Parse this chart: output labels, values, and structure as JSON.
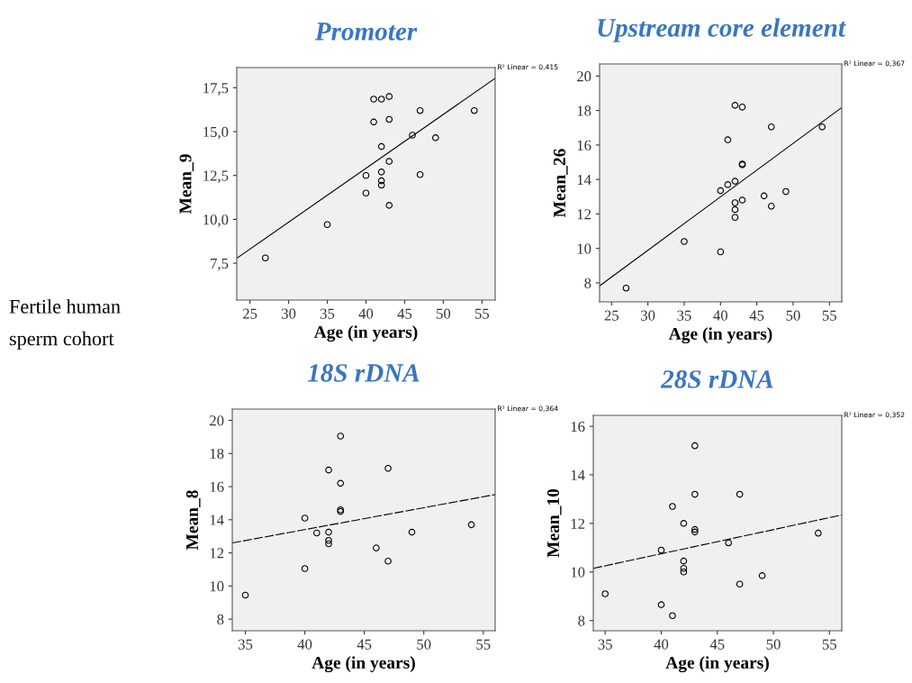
{
  "chart_data": [
    {
      "type": "scatter",
      "title": "Promoter",
      "xlabel": "Age (in years)",
      "ylabel": "Mean_9",
      "xlim": [
        23.3,
        56.7
      ],
      "ylim": [
        5.4,
        18.65
      ],
      "xticks": [
        25,
        30,
        35,
        40,
        45,
        50,
        55
      ],
      "yticks": [
        {
          "value": 7.5,
          "label": "7,5"
        },
        {
          "value": 10.0,
          "label": "10,0"
        },
        {
          "value": 12.5,
          "label": "12,5"
        },
        {
          "value": 15.0,
          "label": "15,0"
        },
        {
          "value": 17.5,
          "label": "17,5"
        }
      ],
      "grid": false,
      "annotations": [
        "R² Linear = 0,415"
      ],
      "series": [
        {
          "type": "scatter",
          "color": "#000000",
          "marker": "circle",
          "x": [
            27,
            35,
            40,
            40,
            41,
            41,
            42,
            42,
            42,
            42,
            42,
            43,
            43,
            43,
            43,
            46,
            47,
            47,
            49,
            54
          ],
          "values": [
            7.8,
            9.7,
            12.5,
            11.5,
            16.85,
            15.55,
            16.85,
            14.15,
            12.7,
            12.2,
            11.95,
            17.0,
            15.7,
            13.3,
            10.8,
            14.8,
            16.2,
            12.55,
            14.65,
            16.2
          ]
        },
        {
          "type": "line",
          "color": "#000000",
          "line_style": "solid",
          "x": [
            23.3,
            56.7
          ],
          "values": [
            7.78,
            18.04
          ]
        }
      ]
    },
    {
      "type": "scatter",
      "title": "Upstream core element",
      "xlabel": "Age (in years)",
      "ylabel": "Mean_26",
      "xlim": [
        23.35,
        56.7
      ],
      "ylim": [
        6.9,
        20.7
      ],
      "xticks": [
        25,
        30,
        35,
        40,
        45,
        50,
        55
      ],
      "yticks": [
        8,
        10,
        12,
        14,
        16,
        18,
        20
      ],
      "grid": false,
      "annotations": [
        "R² Linear = 0,367"
      ],
      "series": [
        {
          "type": "scatter",
          "color": "#000000",
          "marker": "circle",
          "x": [
            27,
            35,
            40,
            40,
            41,
            41,
            42,
            42,
            42,
            42,
            42,
            43,
            43,
            43,
            43,
            46,
            47,
            47,
            49,
            54
          ],
          "values": [
            7.7,
            10.4,
            13.35,
            9.8,
            16.3,
            13.7,
            18.3,
            13.9,
            12.65,
            12.25,
            11.8,
            18.2,
            14.9,
            14.85,
            12.8,
            13.05,
            17.05,
            12.45,
            13.3,
            17.05
          ]
        },
        {
          "type": "line",
          "color": "#000000",
          "line_style": "solid",
          "x": [
            23.35,
            56.7
          ],
          "values": [
            7.83,
            18.17
          ]
        }
      ]
    },
    {
      "type": "other",
      "annotations": [
        "Fertile human sperm cohort"
      ]
    },
    {
      "type": "scatter",
      "title": "18S rDNA",
      "xlabel": "Age (in years)",
      "ylabel": "Mean_8",
      "xlim": [
        33.9,
        56.0
      ],
      "ylim": [
        7.3,
        20.68
      ],
      "xticks": [
        35,
        40,
        45,
        50,
        55
      ],
      "yticks": [
        8,
        10,
        12,
        14,
        16,
        18,
        20
      ],
      "grid": false,
      "annotations": [
        "R² Linear = 0,364"
      ],
      "series": [
        {
          "type": "scatter",
          "color": "#000000",
          "marker": "circle",
          "x": [
            35,
            40,
            40,
            41,
            42,
            42,
            42,
            42,
            43,
            43,
            43,
            43,
            46,
            47,
            47,
            49,
            54
          ],
          "values": [
            9.45,
            14.1,
            11.05,
            13.2,
            17.0,
            13.25,
            12.75,
            12.55,
            19.05,
            16.2,
            14.6,
            14.5,
            12.3,
            17.1,
            11.5,
            13.25,
            13.7
          ]
        },
        {
          "type": "line",
          "color": "#000000",
          "line_style": "dashed",
          "x": [
            33.9,
            56.0
          ],
          "values": [
            12.6,
            15.52
          ]
        }
      ]
    },
    {
      "type": "scatter",
      "title": "28S rDNA",
      "xlabel": "Age (in years)",
      "ylabel": "Mean_10",
      "xlim": [
        33.94,
        56.1
      ],
      "ylim": [
        7.58,
        16.45
      ],
      "xticks": [
        35,
        40,
        45,
        50,
        55
      ],
      "yticks": [
        8,
        10,
        12,
        14,
        16
      ],
      "grid": false,
      "annotations": [
        "R² Linear = 0,352"
      ],
      "series": [
        {
          "type": "scatter",
          "color": "#000000",
          "marker": "circle",
          "x": [
            35,
            40,
            40,
            41,
            41,
            42,
            42,
            42,
            42,
            43,
            43,
            43,
            43,
            46,
            47,
            47,
            49,
            54
          ],
          "values": [
            9.1,
            10.9,
            8.65,
            12.7,
            8.2,
            12.0,
            10.45,
            10.15,
            10.0,
            15.2,
            13.2,
            11.75,
            11.65,
            11.2,
            13.2,
            9.5,
            9.85,
            11.6
          ]
        },
        {
          "type": "line",
          "color": "#000000",
          "line_style": "dashed",
          "x": [
            33.94,
            56.1
          ],
          "values": [
            10.15,
            12.35
          ]
        }
      ]
    }
  ]
}
